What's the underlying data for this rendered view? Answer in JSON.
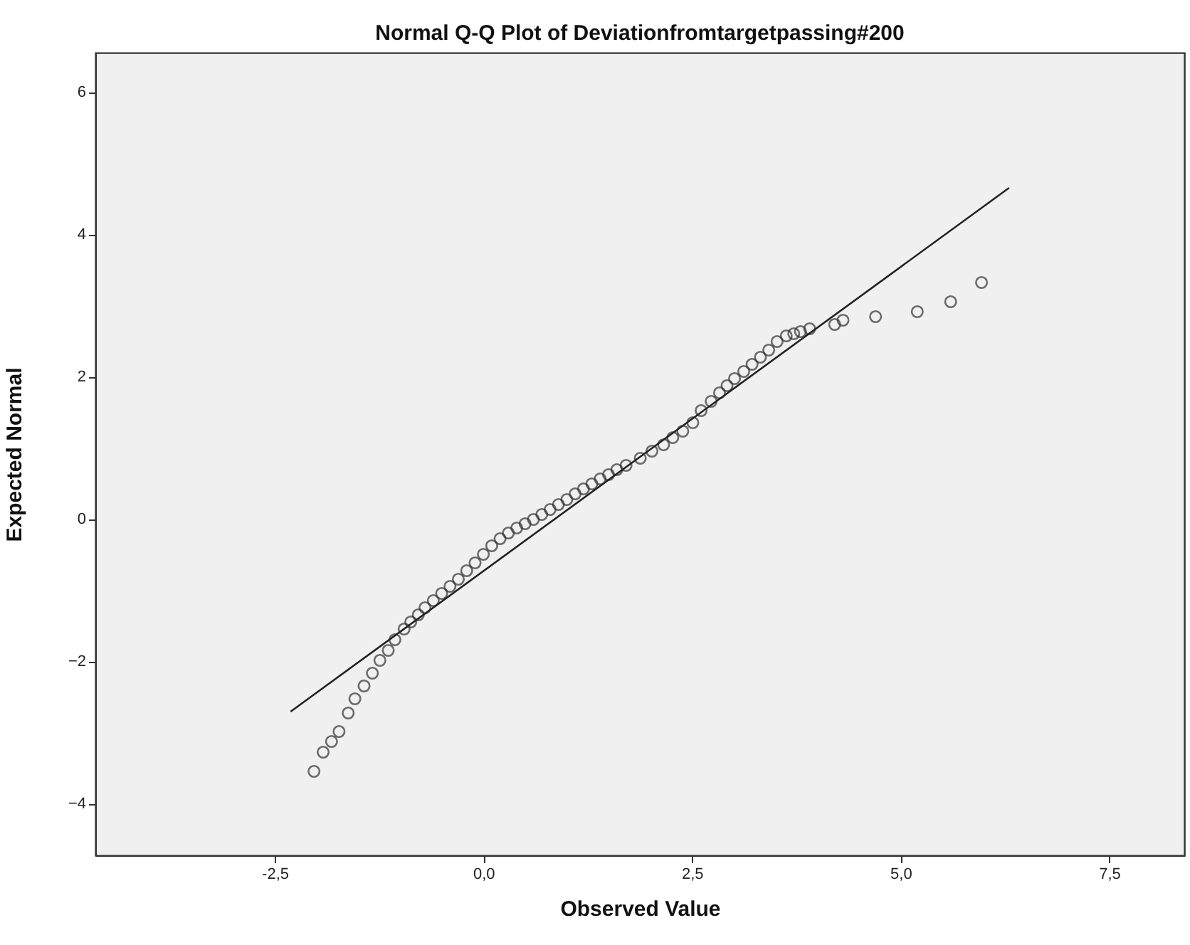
{
  "chart_data": {
    "type": "scatter",
    "title": "Normal Q-Q Plot of Deviationfromtargetpassing#200",
    "xlabel": "Observed Value",
    "ylabel": "Expected Normal",
    "xlim": [
      -4.65,
      8.4
    ],
    "ylim": [
      -4.73,
      6.55
    ],
    "xticks": [
      {
        "value": -2.5,
        "label": "-2,5"
      },
      {
        "value": 0,
        "label": "0,0"
      },
      {
        "value": 2.5,
        "label": "2,5"
      },
      {
        "value": 5,
        "label": "5,0"
      },
      {
        "value": 7.5,
        "label": "7,5"
      }
    ],
    "yticks": [
      -4,
      -2,
      0,
      2,
      4,
      6
    ],
    "grid": false,
    "series": [
      {
        "color": "#333333",
        "marker": "circle",
        "x": [
          -2.03,
          -1.92,
          -1.82,
          -1.73,
          -1.62,
          -1.54,
          -1.43,
          -1.33,
          -1.24,
          -1.14,
          -1.06,
          -0.95,
          -0.87,
          -0.78,
          -0.7,
          -0.6,
          -0.5,
          -0.4,
          -0.3,
          -0.2,
          -0.1,
          0.0,
          0.1,
          0.2,
          0.3,
          0.4,
          0.5,
          0.6,
          0.7,
          0.8,
          0.9,
          1.0,
          1.1,
          1.2,
          1.3,
          1.4,
          1.5,
          1.6,
          1.71,
          1.88,
          2.02,
          2.16,
          2.27,
          2.39,
          2.51,
          2.61,
          2.73,
          2.83,
          2.92,
          3.01,
          3.12,
          3.22,
          3.32,
          3.42,
          3.52,
          3.63,
          3.72,
          3.8,
          3.91,
          4.21,
          4.31,
          4.7,
          5.2,
          5.6,
          5.97
        ],
        "values": [
          -3.55,
          -3.28,
          -3.13,
          -2.99,
          -2.73,
          -2.53,
          -2.35,
          -2.17,
          -1.99,
          -1.85,
          -1.7,
          -1.55,
          -1.45,
          -1.35,
          -1.25,
          -1.15,
          -1.05,
          -0.95,
          -0.85,
          -0.73,
          -0.62,
          -0.5,
          -0.38,
          -0.28,
          -0.2,
          -0.13,
          -0.07,
          -0.01,
          0.06,
          0.13,
          0.2,
          0.27,
          0.35,
          0.42,
          0.49,
          0.56,
          0.62,
          0.69,
          0.75,
          0.85,
          0.95,
          1.04,
          1.14,
          1.23,
          1.35,
          1.52,
          1.65,
          1.77,
          1.87,
          1.97,
          2.07,
          2.17,
          2.27,
          2.37,
          2.49,
          2.57,
          2.6,
          2.63,
          2.67,
          2.73,
          2.79,
          2.84,
          2.91,
          3.05,
          3.32
        ]
      },
      {
        "type": "line",
        "color": "#222222",
        "x": [
          -2.31,
          6.3
        ],
        "values": [
          -2.71,
          4.65
        ]
      }
    ]
  }
}
